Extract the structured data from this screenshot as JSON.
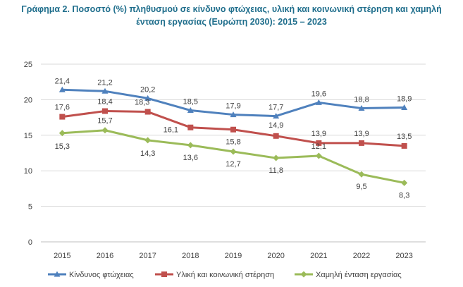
{
  "chart_data": {
    "type": "line",
    "title_lines": [
      "Γράφημα 2. Ποσοστό (%) πληθυσμού σε κίνδυνο φτώχειας, υλική και κοινωνική στέρηση και χαμηλή",
      "ένταση εργασίας (Ευρώπη 2030): 2015 – 2023"
    ],
    "categories": [
      "2015",
      "2016",
      "2017",
      "2018",
      "2019",
      "2020",
      "2021",
      "2022",
      "2023"
    ],
    "ylim": [
      0,
      25
    ],
    "yticks": [
      "0",
      "5",
      "10",
      "15",
      "20",
      "25"
    ],
    "grid": true,
    "legend_position": "bottom",
    "series": [
      {
        "name": "Κίνδυνος φτώχειας",
        "color": "#4f81bd",
        "marker": "triangle",
        "values": [
          21.4,
          21.2,
          20.2,
          18.5,
          17.9,
          17.7,
          19.6,
          18.8,
          18.9
        ],
        "labels": [
          "21,4",
          "21,2",
          "20,2",
          "18,5",
          "17,9",
          "17,7",
          "19,6",
          "18,8",
          "18,9"
        ]
      },
      {
        "name": "Υλική και κοινωνική στέρηση",
        "color": "#c0504d",
        "marker": "square",
        "values": [
          17.6,
          18.4,
          18.3,
          16.1,
          15.8,
          14.9,
          13.9,
          13.9,
          13.5
        ],
        "labels": [
          "17,6",
          "18,4",
          "18,3",
          "16,1",
          "15,8",
          "14,9",
          "13,9",
          "13,9",
          "13,5"
        ]
      },
      {
        "name": "Χαμηλή ένταση εργασίας",
        "color": "#9bbb59",
        "marker": "diamond",
        "values": [
          15.3,
          15.7,
          14.3,
          13.6,
          12.7,
          11.8,
          12.1,
          9.5,
          8.3
        ],
        "labels": [
          "15,3",
          "15,7",
          "14,3",
          "13,6",
          "12,7",
          "11,8",
          "12,1",
          "9,5",
          "8,3"
        ]
      }
    ]
  }
}
